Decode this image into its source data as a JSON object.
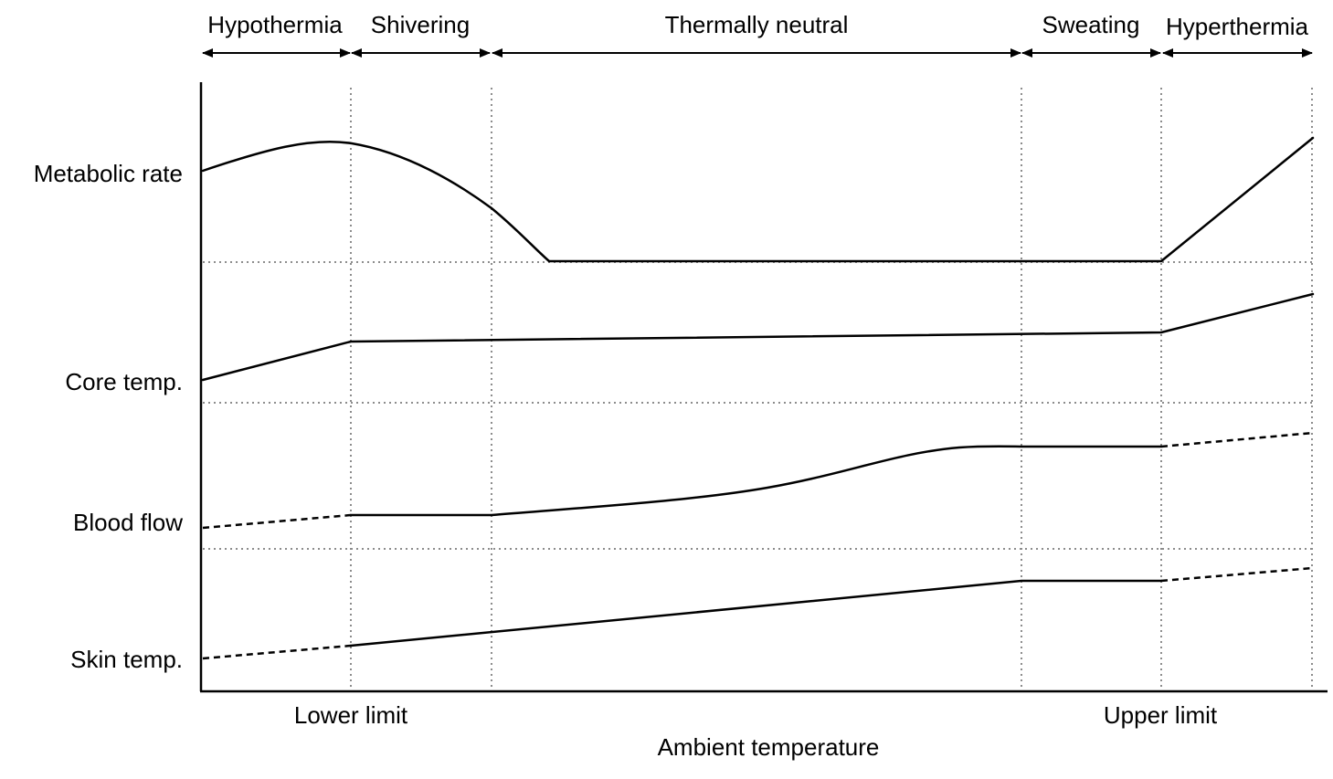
{
  "zones": [
    {
      "label": "Hypothermia"
    },
    {
      "label": "Shivering"
    },
    {
      "label": "Thermally neutral"
    },
    {
      "label": "Sweating"
    },
    {
      "label": "Hyperthermia"
    }
  ],
  "rows": [
    {
      "label": "Metabolic rate"
    },
    {
      "label": "Core temp."
    },
    {
      "label": "Blood flow"
    },
    {
      "label": "Skin temp."
    }
  ],
  "x_labels": {
    "lower_limit": "Lower limit",
    "upper_limit": "Upper limit"
  },
  "x_axis_title": "Ambient temperature",
  "colors": {
    "line": "#000000",
    "guide": "#8c8c8c",
    "background": "#ffffff"
  }
}
